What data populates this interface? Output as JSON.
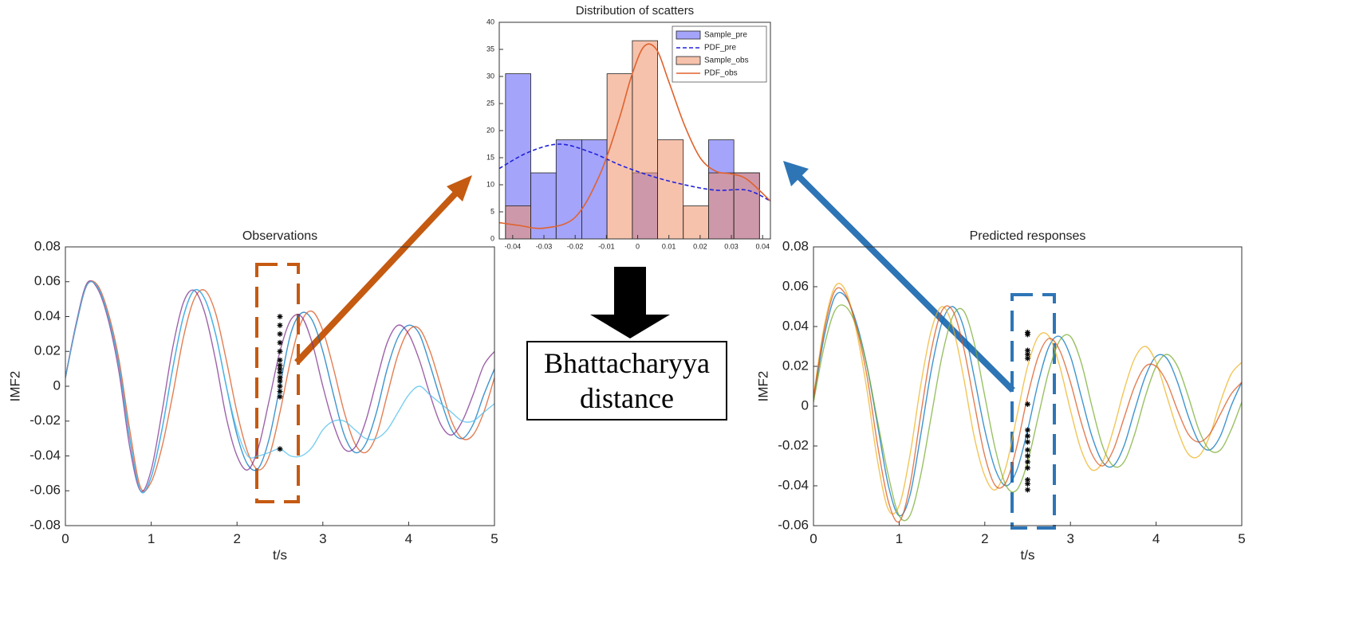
{
  "chart_data": [
    {
      "type": "histogram",
      "title": "Distribution of scatters",
      "bins": [
        -0.0423,
        -0.0342,
        -0.0261,
        -0.0179,
        -0.0098,
        -0.0017,
        0.0064,
        0.0146,
        0.0227,
        0.0308,
        0.039
      ],
      "series": [
        {
          "name": "Sample_pre",
          "style": "bars",
          "color": "#5a5af5",
          "values": [
            30.5,
            12.2,
            18.3,
            18.3,
            0,
            12.2,
            0,
            0,
            18.3,
            12.2
          ]
        },
        {
          "name": "PDF_pre",
          "style": "dashed",
          "color": "#2222dd",
          "x": [
            -0.0443,
            -0.035,
            -0.025,
            -0.015,
            -0.005,
            0.005,
            0.015,
            0.025,
            0.035,
            0.0425
          ],
          "values": [
            13,
            16,
            17.5,
            16,
            13.5,
            11.5,
            10,
            9,
            9,
            7
          ]
        },
        {
          "name": "Sample_obs",
          "style": "bars",
          "color": "#ee9068",
          "values": [
            6.1,
            0,
            0,
            0,
            30.5,
            36.6,
            18.3,
            6.1,
            12.2,
            12.2
          ]
        },
        {
          "name": "PDF_obs",
          "style": "solid",
          "color": "#e0622e",
          "x": [
            -0.0443,
            -0.038,
            -0.03,
            -0.02,
            -0.012,
            -0.006,
            -0.002,
            0.002,
            0.006,
            0.01,
            0.015,
            0.02,
            0.025,
            0.03,
            0.035,
            0.0425
          ],
          "values": [
            3,
            2.5,
            2,
            4,
            12,
            22,
            30,
            35.5,
            35,
            29,
            21,
            15,
            12.5,
            12,
            11,
            7
          ]
        }
      ],
      "xlim": [
        -0.0443,
        0.0425
      ],
      "xticks": [
        -0.04,
        -0.03,
        -0.02,
        -0.01,
        0,
        0.01,
        0.02,
        0.03,
        0.04
      ],
      "ylim": [
        0,
        40
      ],
      "yticks": [
        0,
        5,
        10,
        15,
        20,
        25,
        30,
        35,
        40
      ],
      "legend": "upper right"
    },
    {
      "type": "line",
      "title": "Observations",
      "x_label": "t/s",
      "y_label": "IMF2",
      "x": [
        0,
        0.125,
        0.25,
        0.375,
        0.5,
        0.625,
        0.75,
        0.875,
        1,
        1.125,
        1.25,
        1.375,
        1.5,
        1.625,
        1.75,
        1.875,
        2,
        2.125,
        2.25,
        2.375,
        2.5,
        2.625,
        2.75,
        2.875,
        3,
        3.125,
        3.25,
        3.375,
        3.5,
        3.625,
        3.75,
        3.875,
        4,
        4.125,
        4.25,
        4.375,
        4.5,
        4.625,
        4.75,
        4.875,
        5
      ],
      "series": [
        {
          "color": "#0072bd",
          "values": [
            0.005,
            0.035,
            0.058,
            0.057,
            0.04,
            0.012,
            -0.03,
            -0.06,
            -0.052,
            -0.025,
            0.01,
            0.04,
            0.055,
            0.05,
            0.03,
            0.0,
            -0.028,
            -0.045,
            -0.047,
            -0.03,
            0.0,
            0.03,
            0.042,
            0.038,
            0.02,
            -0.005,
            -0.028,
            -0.038,
            -0.033,
            -0.015,
            0.01,
            0.028,
            0.035,
            0.03,
            0.012,
            -0.008,
            -0.025,
            -0.03,
            -0.022,
            -0.005,
            0.01
          ]
        },
        {
          "color": "#d95319",
          "values": [
            0.005,
            0.035,
            0.058,
            0.058,
            0.042,
            0.015,
            -0.025,
            -0.058,
            -0.055,
            -0.035,
            -0.005,
            0.028,
            0.05,
            0.055,
            0.042,
            0.015,
            -0.015,
            -0.038,
            -0.048,
            -0.04,
            -0.015,
            0.015,
            0.037,
            0.043,
            0.032,
            0.01,
            -0.015,
            -0.033,
            -0.038,
            -0.028,
            -0.005,
            0.018,
            0.032,
            0.033,
            0.02,
            0.0,
            -0.02,
            -0.03,
            -0.028,
            -0.015,
            0.005
          ]
        },
        {
          "color": "#7e2f8e",
          "values": [
            0.005,
            0.036,
            0.059,
            0.056,
            0.038,
            0.008,
            -0.035,
            -0.06,
            -0.048,
            -0.015,
            0.022,
            0.048,
            0.055,
            0.042,
            0.015,
            -0.018,
            -0.04,
            -0.048,
            -0.035,
            -0.008,
            0.02,
            0.038,
            0.04,
            0.025,
            0.0,
            -0.022,
            -0.036,
            -0.035,
            -0.02,
            0.003,
            0.025,
            0.035,
            0.03,
            0.015,
            -0.005,
            -0.022,
            -0.028,
            -0.02,
            -0.005,
            0.012,
            0.02
          ]
        },
        {
          "color": "#4dbeee",
          "values": [
            0.005,
            0.035,
            0.058,
            0.057,
            0.04,
            0.012,
            -0.03,
            -0.06,
            -0.052,
            -0.025,
            0.01,
            0.04,
            0.055,
            0.05,
            0.03,
            0.0,
            -0.025,
            -0.04,
            -0.04,
            -0.038,
            -0.036,
            -0.04,
            -0.04,
            -0.035,
            -0.025,
            -0.02,
            -0.02,
            -0.025,
            -0.03,
            -0.03,
            -0.025,
            -0.015,
            -0.005,
            0.0,
            -0.005,
            -0.01,
            -0.015,
            -0.02,
            -0.02,
            -0.015,
            -0.01
          ]
        }
      ],
      "markers": {
        "x": [
          2.5,
          2.5,
          2.5,
          2.5,
          2.5,
          2.5,
          2.5,
          2.5,
          2.5,
          2.5,
          2.5,
          2.5,
          2.5,
          2.5,
          2.5
        ],
        "y": [
          0.04,
          0.035,
          0.03,
          0.025,
          0.02,
          0.015,
          0.012,
          0.01,
          0.008,
          0.005,
          0.003,
          0.0,
          -0.003,
          -0.006,
          -0.036
        ]
      },
      "xlim": [
        0,
        5
      ],
      "xticks": [
        0,
        1,
        2,
        3,
        4,
        5
      ],
      "ylim": [
        -0.08,
        0.08
      ],
      "yticks": [
        -0.08,
        -0.06,
        -0.04,
        -0.02,
        0,
        0.02,
        0.04,
        0.06,
        0.08
      ]
    },
    {
      "type": "line",
      "title": "Predicted responses",
      "x_label": "t/s",
      "y_label": "IMF2",
      "x": [
        0,
        0.125,
        0.25,
        0.375,
        0.5,
        0.625,
        0.75,
        0.875,
        1,
        1.125,
        1.25,
        1.375,
        1.5,
        1.625,
        1.75,
        1.875,
        2,
        2.125,
        2.25,
        2.375,
        2.5,
        2.625,
        2.75,
        2.875,
        3,
        3.125,
        3.25,
        3.375,
        3.5,
        3.625,
        3.75,
        3.875,
        4,
        4.125,
        4.25,
        4.375,
        4.5,
        4.625,
        4.75,
        4.875,
        5
      ],
      "series": [
        {
          "color": "#0072bd",
          "values": [
            0.003,
            0.035,
            0.055,
            0.055,
            0.042,
            0.02,
            -0.01,
            -0.04,
            -0.055,
            -0.045,
            -0.015,
            0.018,
            0.042,
            0.05,
            0.04,
            0.015,
            -0.012,
            -0.032,
            -0.04,
            -0.032,
            -0.012,
            0.012,
            0.03,
            0.035,
            0.025,
            0.005,
            -0.015,
            -0.028,
            -0.03,
            -0.02,
            -0.002,
            0.015,
            0.025,
            0.024,
            0.012,
            -0.005,
            -0.018,
            -0.022,
            -0.015,
            0.0,
            0.012
          ]
        },
        {
          "color": "#edb120",
          "values": [
            0.005,
            0.04,
            0.06,
            0.058,
            0.038,
            0.008,
            -0.028,
            -0.052,
            -0.05,
            -0.025,
            0.01,
            0.038,
            0.05,
            0.04,
            0.015,
            -0.015,
            -0.035,
            -0.042,
            -0.03,
            -0.005,
            0.02,
            0.035,
            0.035,
            0.02,
            -0.002,
            -0.022,
            -0.032,
            -0.028,
            -0.012,
            0.008,
            0.024,
            0.03,
            0.022,
            0.005,
            -0.012,
            -0.024,
            -0.025,
            -0.015,
            0.002,
            0.016,
            0.022
          ]
        },
        {
          "color": "#77ac30",
          "values": [
            0.002,
            0.03,
            0.048,
            0.05,
            0.04,
            0.02,
            -0.008,
            -0.035,
            -0.055,
            -0.055,
            -0.035,
            -0.005,
            0.025,
            0.045,
            0.048,
            0.032,
            0.005,
            -0.022,
            -0.04,
            -0.042,
            -0.028,
            -0.005,
            0.018,
            0.033,
            0.035,
            0.022,
            0.0,
            -0.02,
            -0.03,
            -0.028,
            -0.014,
            0.005,
            0.02,
            0.026,
            0.02,
            0.005,
            -0.012,
            -0.022,
            -0.022,
            -0.012,
            0.002
          ]
        },
        {
          "color": "#d95319",
          "values": [
            0.004,
            0.038,
            0.058,
            0.056,
            0.04,
            0.015,
            -0.02,
            -0.048,
            -0.058,
            -0.04,
            -0.005,
            0.028,
            0.048,
            0.048,
            0.03,
            0.002,
            -0.025,
            -0.04,
            -0.038,
            -0.02,
            0.005,
            0.025,
            0.034,
            0.028,
            0.012,
            -0.008,
            -0.024,
            -0.03,
            -0.022,
            -0.006,
            0.01,
            0.02,
            0.02,
            0.012,
            -0.002,
            -0.014,
            -0.018,
            -0.014,
            -0.004,
            0.006,
            0.012
          ]
        }
      ],
      "markers": {
        "x": [
          2.5,
          2.5,
          2.5,
          2.5,
          2.5,
          2.5,
          2.5,
          2.5,
          2.5,
          2.5,
          2.5,
          2.5,
          2.5,
          2.5,
          2.5,
          2.5
        ],
        "y": [
          0.037,
          0.036,
          0.028,
          0.026,
          0.024,
          0.001,
          -0.012,
          -0.015,
          -0.018,
          -0.022,
          -0.025,
          -0.028,
          -0.031,
          -0.037,
          -0.039,
          -0.042
        ]
      },
      "xlim": [
        0,
        5
      ],
      "xticks": [
        0,
        1,
        2,
        3,
        4,
        5
      ],
      "ylim": [
        -0.06,
        0.08
      ],
      "yticks": [
        -0.06,
        -0.04,
        -0.02,
        0,
        0.02,
        0.04,
        0.06,
        0.08
      ]
    }
  ],
  "annotation": "Bhattacharyya distance"
}
